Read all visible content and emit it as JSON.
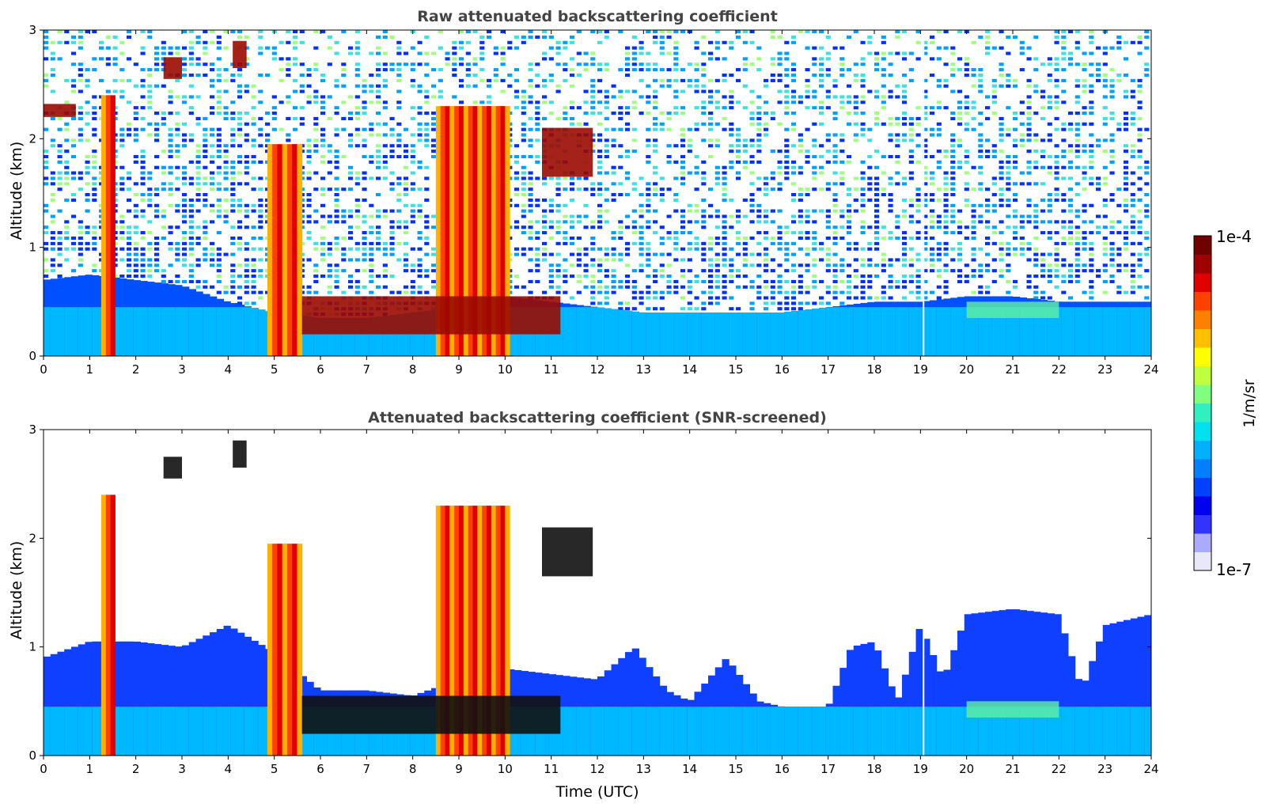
{
  "chart_data": [
    {
      "type": "heatmap",
      "title": "Raw attenuated backscattering coefficient",
      "xlabel": "",
      "ylabel": "Altitude (km)",
      "xlim": [
        0,
        24
      ],
      "ylim": [
        0,
        3
      ],
      "x_ticks": [
        "0",
        "1",
        "2",
        "3",
        "4",
        "5",
        "6",
        "7",
        "8",
        "9",
        "10",
        "11",
        "12",
        "13",
        "14",
        "15",
        "16",
        "17",
        "18",
        "19",
        "20",
        "21",
        "22",
        "23",
        "24"
      ],
      "y_ticks": [
        "0",
        "1",
        "2",
        "3"
      ],
      "boundary_layer_top_km": [
        [
          0,
          0.7
        ],
        [
          1,
          0.75
        ],
        [
          2,
          0.7
        ],
        [
          3,
          0.65
        ],
        [
          4,
          0.5
        ],
        [
          5,
          0.4
        ],
        [
          6,
          0.35
        ],
        [
          7,
          0.35
        ],
        [
          8,
          0.4
        ],
        [
          9,
          0.45
        ],
        [
          10,
          0.55
        ],
        [
          11,
          0.5
        ],
        [
          12,
          0.45
        ],
        [
          13,
          0.4
        ],
        [
          14,
          0.4
        ],
        [
          15,
          0.4
        ],
        [
          16,
          0.4
        ],
        [
          17,
          0.45
        ],
        [
          18,
          0.5
        ],
        [
          19,
          0.5
        ],
        [
          20,
          0.55
        ],
        [
          21,
          0.55
        ],
        [
          22,
          0.5
        ],
        [
          23,
          0.5
        ],
        [
          24,
          0.5
        ]
      ],
      "features": [
        {
          "x0": 1.25,
          "x1": 1.55,
          "y0": 0,
          "y1": 2.4,
          "level": "strong"
        },
        {
          "x0": 4.85,
          "x1": 5.6,
          "y0": 0,
          "y1": 1.95,
          "level": "strong"
        },
        {
          "x0": 8.5,
          "x1": 10.1,
          "y0": 0,
          "y1": 2.3,
          "level": "strong"
        },
        {
          "x0": 5.6,
          "x1": 11.2,
          "y0": 0.2,
          "y1": 0.55,
          "level": "cloud"
        },
        {
          "x0": 10.8,
          "x1": 11.9,
          "y0": 1.65,
          "y1": 2.1,
          "level": "cloud"
        },
        {
          "x0": 2.6,
          "x1": 3.0,
          "y0": 2.55,
          "y1": 2.75,
          "level": "cloud"
        },
        {
          "x0": 4.1,
          "x1": 4.4,
          "y0": 2.65,
          "y1": 2.9,
          "level": "cloud"
        },
        {
          "x0": 0.0,
          "x1": 0.7,
          "y0": 2.2,
          "y1": 2.32,
          "level": "cloud"
        },
        {
          "x0": 20.0,
          "x1": 22.0,
          "y0": 0.35,
          "y1": 0.5,
          "level": "aerosol"
        }
      ]
    },
    {
      "type": "heatmap",
      "title": "Attenuated backscattering coefficient (SNR-screened)",
      "xlabel": "Time (UTC)",
      "ylabel": "Altitude (km)",
      "xlim": [
        0,
        24
      ],
      "ylim": [
        0,
        3
      ],
      "x_ticks": [
        "0",
        "1",
        "2",
        "3",
        "4",
        "5",
        "6",
        "7",
        "8",
        "9",
        "10",
        "11",
        "12",
        "13",
        "14",
        "15",
        "16",
        "17",
        "18",
        "19",
        "20",
        "21",
        "22",
        "23",
        "24"
      ],
      "y_ticks": [
        "0",
        "1",
        "2",
        "3"
      ],
      "screened_top_km": [
        [
          0,
          0.9
        ],
        [
          1,
          1.05
        ],
        [
          2,
          1.05
        ],
        [
          3,
          1.0
        ],
        [
          4,
          1.2
        ],
        [
          5,
          0.95
        ],
        [
          6,
          0.6
        ],
        [
          7,
          0.6
        ],
        [
          8,
          0.55
        ],
        [
          9,
          0.7
        ],
        [
          10,
          0.8
        ],
        [
          11,
          0.75
        ],
        [
          12,
          0.7
        ],
        [
          12.8,
          1.0
        ],
        [
          13.5,
          0.6
        ],
        [
          14,
          0.5
        ],
        [
          14.8,
          0.9
        ],
        [
          15.5,
          0.5
        ],
        [
          16,
          0.45
        ],
        [
          17,
          0.45
        ],
        [
          17.5,
          1.0
        ],
        [
          18,
          1.05
        ],
        [
          18.5,
          0.5
        ],
        [
          19,
          1.2
        ],
        [
          19.5,
          0.7
        ],
        [
          20,
          1.3
        ],
        [
          21,
          1.35
        ],
        [
          22,
          1.3
        ],
        [
          22.5,
          0.6
        ],
        [
          23,
          1.2
        ],
        [
          24,
          1.3
        ]
      ],
      "features": [
        {
          "x0": 1.25,
          "x1": 1.55,
          "y0": 0,
          "y1": 2.4,
          "level": "strong"
        },
        {
          "x0": 4.85,
          "x1": 5.6,
          "y0": 0,
          "y1": 1.95,
          "level": "strong"
        },
        {
          "x0": 8.5,
          "x1": 10.1,
          "y0": 0,
          "y1": 2.3,
          "level": "strong"
        },
        {
          "x0": 5.6,
          "x1": 11.2,
          "y0": 0.2,
          "y1": 0.55,
          "level": "saturated"
        },
        {
          "x0": 10.8,
          "x1": 11.9,
          "y0": 1.65,
          "y1": 2.1,
          "level": "saturated"
        },
        {
          "x0": 2.6,
          "x1": 3.0,
          "y0": 2.55,
          "y1": 2.75,
          "level": "saturated"
        },
        {
          "x0": 4.1,
          "x1": 4.4,
          "y0": 2.65,
          "y1": 2.9,
          "level": "saturated"
        },
        {
          "x0": 20.0,
          "x1": 22.0,
          "y0": 0.35,
          "y1": 0.5,
          "level": "aerosol"
        }
      ]
    }
  ],
  "colorbar": {
    "max_label": "1e-4",
    "min_label": "1e-7",
    "units": "1/m/sr",
    "colors": [
      "#e8e8f8",
      "#aaaaff",
      "#3333ff",
      "#0000ee",
      "#0040ff",
      "#0080ff",
      "#00b0ff",
      "#00e0ee",
      "#30f0c0",
      "#80ff80",
      "#c0ff40",
      "#ffff00",
      "#ffc000",
      "#ff8000",
      "#ff4000",
      "#e00000",
      "#a00000",
      "#700000"
    ]
  }
}
